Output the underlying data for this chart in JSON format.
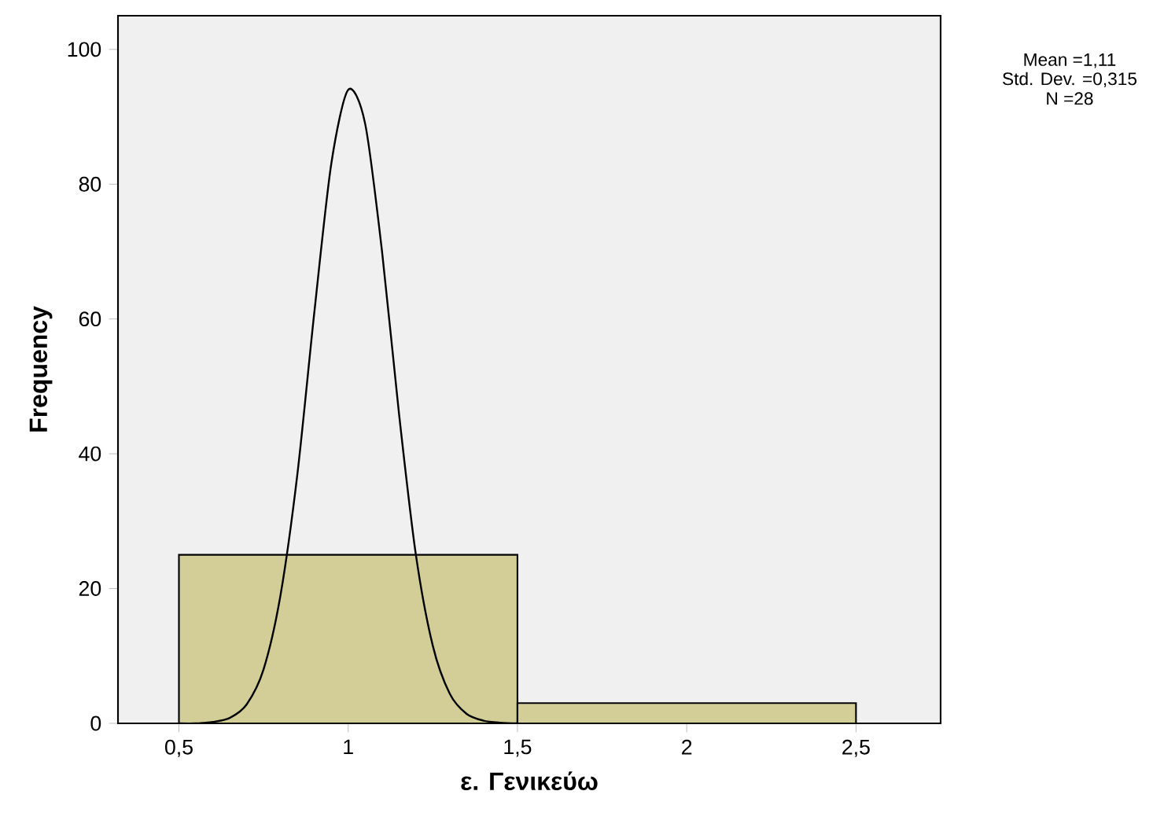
{
  "chart_data": {
    "type": "histogram",
    "xlabel": "ε. Γενικεύω",
    "ylabel": "Frequency",
    "bins": [
      0.5,
      1.5,
      2.5
    ],
    "values": [
      25,
      3
    ],
    "color": "#d3ce97",
    "series": [
      {
        "type": "line",
        "color": "#000000",
        "x": [
          0.5,
          0.55,
          0.6,
          0.65,
          0.7,
          0.75,
          0.8,
          0.85,
          0.9,
          0.95,
          1.0,
          1.05,
          1.1,
          1.15,
          1.2,
          1.25,
          1.3,
          1.35,
          1.4,
          1.45,
          1.5
        ],
        "values": [
          0,
          0,
          0.2,
          0.8,
          2.8,
          8,
          19,
          37,
          61,
          83,
          94,
          89,
          70,
          46,
          25,
          11.5,
          4.4,
          1.4,
          0.4,
          0.1,
          0
        ]
      }
    ],
    "xlim": [
      0.32,
      2.75
    ],
    "ylim": [
      0,
      105
    ],
    "xticks": [
      {
        "value": 0.5,
        "label": "0,5"
      },
      1,
      {
        "value": 1.5,
        "label": "1,5"
      },
      2,
      {
        "value": 2.5,
        "label": "2,5"
      }
    ],
    "yticks": [
      0,
      20,
      40,
      60,
      80,
      100
    ],
    "annotations": [
      "Mean =1,11",
      "Std. Dev. =0,315",
      "N =28"
    ]
  }
}
